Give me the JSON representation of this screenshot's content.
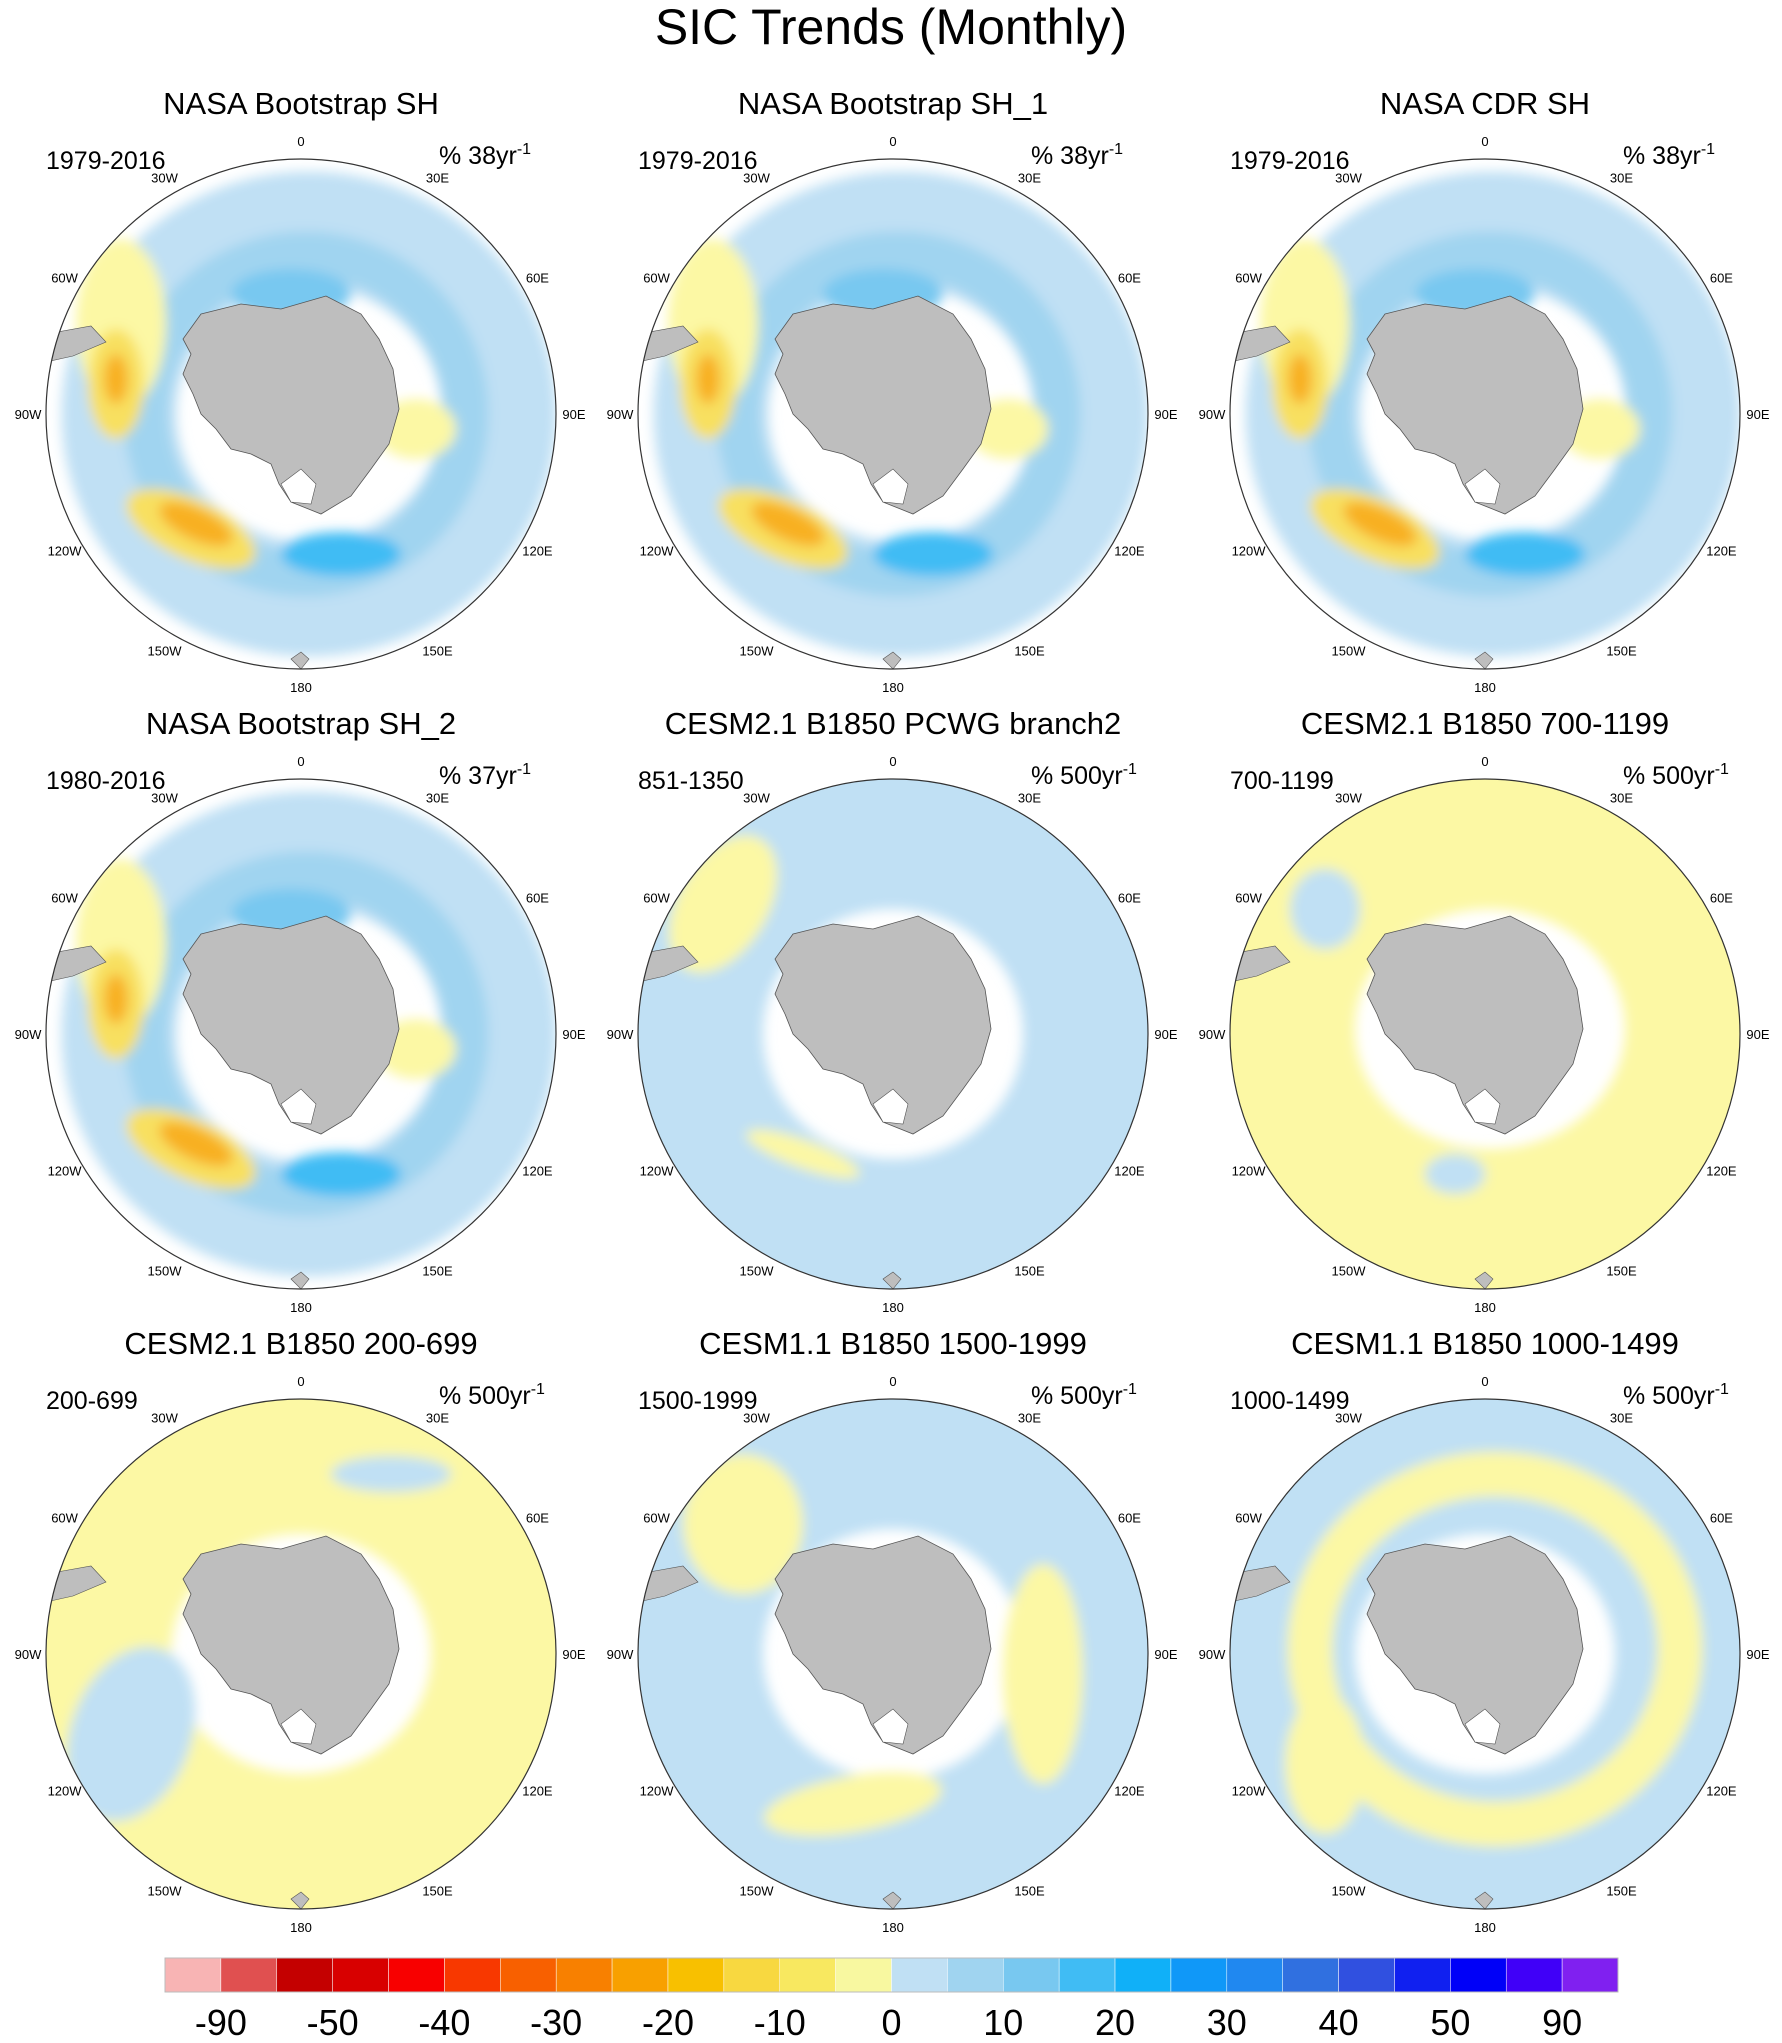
{
  "figure": {
    "title": "SIC Trends (Monthly)"
  },
  "longitude_labels": [
    "0",
    "30E",
    "60E",
    "90E",
    "120E",
    "150E",
    "180",
    "150W",
    "120W",
    "90W",
    "60W",
    "30W"
  ],
  "panels": [
    {
      "title": "NASA Bootstrap SH",
      "years": "1979-2016",
      "units_prefix": "% 38yr",
      "units_exp": "-1",
      "pattern": "obs"
    },
    {
      "title": "NASA Bootstrap SH_1",
      "years": "1979-2016",
      "units_prefix": "% 38yr",
      "units_exp": "-1",
      "pattern": "obs"
    },
    {
      "title": "NASA CDR SH",
      "years": "1979-2016",
      "units_prefix": "% 38yr",
      "units_exp": "-1",
      "pattern": "obs"
    },
    {
      "title": "NASA Bootstrap SH_2",
      "years": "1980-2016",
      "units_prefix": "% 37yr",
      "units_exp": "-1",
      "pattern": "obs"
    },
    {
      "title": "CESM2.1 B1850 PCWG branch2",
      "years": "851-1350",
      "units_prefix": "% 500yr",
      "units_exp": "-1",
      "pattern": "model_blue"
    },
    {
      "title": "CESM2.1 B1850 700-1199",
      "years": "700-1199",
      "units_prefix": "% 500yr",
      "units_exp": "-1",
      "pattern": "model_yellow"
    },
    {
      "title": "CESM2.1 B1850 200-699",
      "years": "200-699",
      "units_prefix": "% 500yr",
      "units_exp": "-1",
      "pattern": "model_yellow2"
    },
    {
      "title": "CESM1.1 B1850 1500-1999",
      "years": "1500-1999",
      "units_prefix": "% 500yr",
      "units_exp": "-1",
      "pattern": "model_mixed"
    },
    {
      "title": "CESM1.1 B1850 1000-1499",
      "years": "1000-1499",
      "units_prefix": "% 500yr",
      "units_exp": "-1",
      "pattern": "model_mixed2"
    }
  ],
  "colorbar": {
    "colors": [
      "#f8b4b4",
      "#e05050",
      "#c40000",
      "#d80000",
      "#f80000",
      "#f83800",
      "#f86000",
      "#f88000",
      "#f8a000",
      "#f8c000",
      "#f8d840",
      "#f8e860",
      "#f8f8a0",
      "#c0e0f4",
      "#a0d4f0",
      "#78c8f0",
      "#40bcf4",
      "#10b0f8",
      "#1098f8",
      "#2088f0",
      "#3070e0",
      "#3050e0",
      "#1020f0",
      "#0000f8",
      "#4000f8",
      "#8020f0"
    ],
    "labels": [
      "-90",
      "-50",
      "-40",
      "-30",
      "-20",
      "-10",
      "0",
      "10",
      "20",
      "30",
      "40",
      "50",
      "90"
    ]
  },
  "colors": {
    "land": "#bebebe",
    "neg_light": "#c0e0f4",
    "neg_mid": "#a0d4f0",
    "neg_strong": "#78c8f0",
    "neg_deep": "#40bcf4",
    "pos_light": "#fcf8a4",
    "pos_mid": "#f8e060",
    "pos_strong": "#f8b020",
    "pos_max": "#f06000"
  }
}
